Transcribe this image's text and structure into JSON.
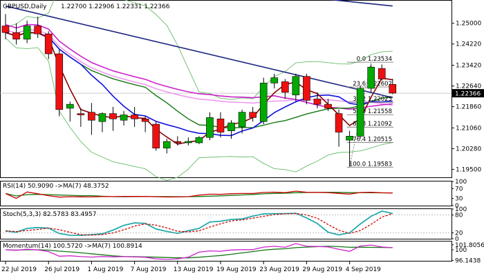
{
  "chart_data": {
    "type": "candlestick",
    "main_panel": {
      "symbol_label": "GBPUSD,Daily",
      "ohlc_header": "1.22700 1.22906 1.22331 1.22366",
      "current_price": "1.22366",
      "y_range": [
        1.192,
        1.2585
      ],
      "y_ticks": [
        "1.25000",
        "1.24220",
        "1.23420",
        "1.22640",
        "1.21860",
        "1.21060",
        "1.20280",
        "1.19500"
      ],
      "x_labels": [
        "22 Jul 2019",
        "26 Jul 2019",
        "1 Aug 2019",
        "7 Aug 2019",
        "13 Aug 2019",
        "19 Aug 2019",
        "23 Aug 2019",
        "29 Aug 2019",
        "4 Sep 2019"
      ],
      "x_label_indices": [
        0,
        4,
        8,
        12,
        16,
        20,
        24,
        28,
        32
      ],
      "candles": [
        {
          "o": 1.249,
          "h": 1.2535,
          "l": 1.244,
          "c": 1.2465
        },
        {
          "o": 1.2465,
          "h": 1.25,
          "l": 1.242,
          "c": 1.244
        },
        {
          "o": 1.244,
          "h": 1.251,
          "l": 1.2425,
          "c": 1.249
        },
        {
          "o": 1.249,
          "h": 1.2525,
          "l": 1.2445,
          "c": 1.246
        },
        {
          "o": 1.246,
          "h": 1.247,
          "l": 1.2365,
          "c": 1.2385
        },
        {
          "o": 1.2385,
          "h": 1.24,
          "l": 1.215,
          "c": 1.2175
        },
        {
          "o": 1.218,
          "h": 1.2205,
          "l": 1.213,
          "c": 1.2195
        },
        {
          "o": 1.216,
          "h": 1.218,
          "l": 1.211,
          "c": 1.2155
        },
        {
          "o": 1.2165,
          "h": 1.22,
          "l": 1.208,
          "c": 1.2135
        },
        {
          "o": 1.213,
          "h": 1.2165,
          "l": 1.209,
          "c": 1.216
        },
        {
          "o": 1.216,
          "h": 1.2185,
          "l": 1.2095,
          "c": 1.214
        },
        {
          "o": 1.2135,
          "h": 1.217,
          "l": 1.2115,
          "c": 1.2155
        },
        {
          "o": 1.2155,
          "h": 1.2185,
          "l": 1.211,
          "c": 1.214
        },
        {
          "o": 1.214,
          "h": 1.215,
          "l": 1.209,
          "c": 1.213
        },
        {
          "o": 1.212,
          "h": 1.213,
          "l": 1.202,
          "c": 1.203
        },
        {
          "o": 1.203,
          "h": 1.2065,
          "l": 1.201,
          "c": 1.2055
        },
        {
          "o": 1.2055,
          "h": 1.2075,
          "l": 1.204,
          "c": 1.205
        },
        {
          "o": 1.205,
          "h": 1.207,
          "l": 1.204,
          "c": 1.2055
        },
        {
          "o": 1.205,
          "h": 1.2075,
          "l": 1.2045,
          "c": 1.207
        },
        {
          "o": 1.207,
          "h": 1.2165,
          "l": 1.206,
          "c": 1.2145
        },
        {
          "o": 1.214,
          "h": 1.2165,
          "l": 1.207,
          "c": 1.209
        },
        {
          "o": 1.2095,
          "h": 1.2135,
          "l": 1.2065,
          "c": 1.2125
        },
        {
          "o": 1.211,
          "h": 1.2175,
          "l": 1.2085,
          "c": 1.2165
        },
        {
          "o": 1.2165,
          "h": 1.2185,
          "l": 1.213,
          "c": 1.2145
        },
        {
          "o": 1.213,
          "h": 1.2295,
          "l": 1.212,
          "c": 1.2275
        },
        {
          "o": 1.2275,
          "h": 1.231,
          "l": 1.2255,
          "c": 1.2295
        },
        {
          "o": 1.228,
          "h": 1.229,
          "l": 1.2215,
          "c": 1.224
        },
        {
          "o": 1.223,
          "h": 1.231,
          "l": 1.2205,
          "c": 1.23
        },
        {
          "o": 1.23,
          "h": 1.231,
          "l": 1.2195,
          "c": 1.221
        },
        {
          "o": 1.2215,
          "h": 1.224,
          "l": 1.218,
          "c": 1.2195
        },
        {
          "o": 1.2195,
          "h": 1.2215,
          "l": 1.217,
          "c": 1.218
        },
        {
          "o": 1.216,
          "h": 1.2175,
          "l": 1.2035,
          "c": 1.209
        },
        {
          "o": 1.206,
          "h": 1.2095,
          "l": 1.196,
          "c": 1.2075
        },
        {
          "o": 1.2075,
          "h": 1.2265,
          "l": 1.2065,
          "c": 1.2255
        },
        {
          "o": 1.2255,
          "h": 1.2345,
          "l": 1.224,
          "c": 1.2335
        },
        {
          "o": 1.233,
          "h": 1.2345,
          "l": 1.2285,
          "c": 1.229
        },
        {
          "o": 1.227,
          "h": 1.2291,
          "l": 1.2233,
          "c": 1.2237
        }
      ],
      "fib_levels": [
        {
          "label": "0.0 1.23534",
          "value": 1.23534
        },
        {
          "label": "23.6 1.22602",
          "value": 1.22602
        },
        {
          "label": "38.2 1.22025",
          "value": 1.22025
        },
        {
          "label": "50.0 1.21558",
          "value": 1.21558
        },
        {
          "label": "61.8 1.21092",
          "value": 1.21092
        },
        {
          "label": "76.4 1.20515",
          "value": 1.20515
        },
        {
          "label": "100.0 1.19583",
          "value": 1.19583
        }
      ],
      "trendline": {
        "from": [
          0,
          1.2565
        ],
        "to": [
          36,
          1.222
        ],
        "color": "#1a237e"
      },
      "top_line": {
        "from": [
          30,
          1.259
        ],
        "to": [
          36,
          1.2565
        ],
        "color": "#1a237e"
      },
      "colors": {
        "bull": "#00aa00",
        "bear": "#ee1111",
        "ma_fast": "#8b0000",
        "ma_mid": "#1010dd",
        "ma_slow": "#117711",
        "ma_magenta": "#cc22cc",
        "ma_pink": "#ee99ee",
        "bollinger": "#66bb66"
      }
    },
    "rsi_panel": {
      "label": "RSI(14) 50.9090 ->MA(7) 48.3752",
      "y_range": [
        0,
        100
      ],
      "y_ticks": [
        "100",
        "70",
        "30",
        "0"
      ]
    },
    "stoch_panel": {
      "label": "Stoch(5,3,3) 82.5783 83.4957",
      "y_range": [
        0,
        100
      ],
      "y_ticks": [
        "100",
        "80",
        "20",
        "0"
      ]
    },
    "momentum_panel": {
      "label": "Momentum(14) 100.5720 ->MA(7) 100.8914",
      "y_range": [
        96.0,
        103.0
      ],
      "y_ticks": [
        "101.8056",
        "100",
        "96.1438"
      ]
    }
  }
}
